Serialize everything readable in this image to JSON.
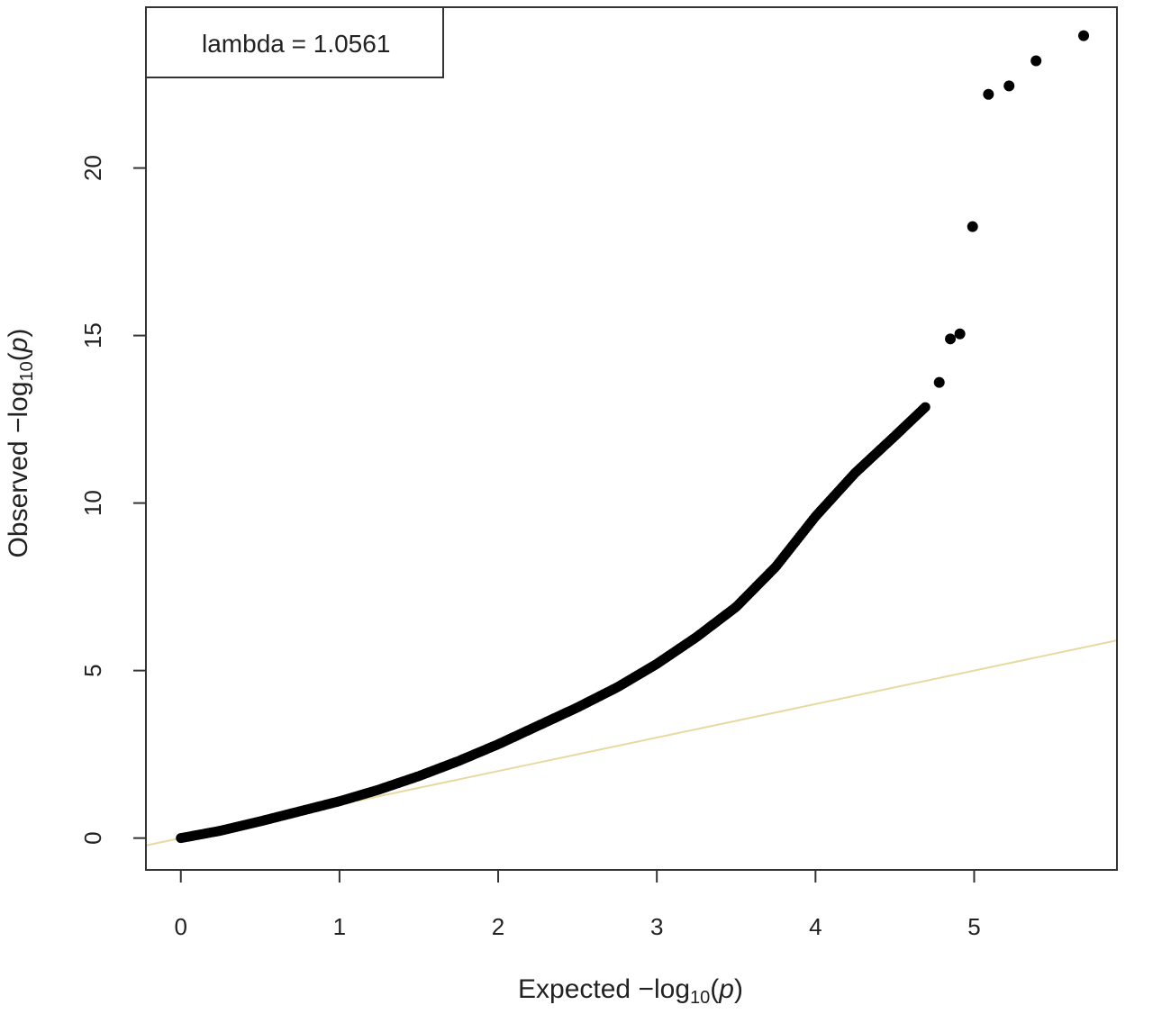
{
  "chart_data": {
    "type": "scatter",
    "title": "",
    "xlabel": "Expected −log10(p)",
    "ylabel": "Observed −log10(p)",
    "xlabel_parts": {
      "prefix": "Expected  −log",
      "sub": "10",
      "open": "(",
      "var": "p",
      "close": ")"
    },
    "ylabel_parts": {
      "prefix": "Observed  −log",
      "sub": "10",
      "open": "(",
      "var": "p",
      "close": ")"
    },
    "xlim": [
      -0.22,
      5.9
    ],
    "ylim": [
      -0.95,
      24.8
    ],
    "xticks": [
      0,
      1,
      2,
      3,
      4,
      5
    ],
    "yticks": [
      0,
      5,
      10,
      15,
      20
    ],
    "xtick_labels": [
      "0",
      "1",
      "2",
      "3",
      "4",
      "5"
    ],
    "ytick_labels": [
      "0",
      "5",
      "10",
      "15",
      "20"
    ],
    "grid": false,
    "legend": {
      "text": "lambda = 1.0561",
      "position": "top-left"
    },
    "reference_line": {
      "slope": 1,
      "intercept": 0,
      "color": "#e8d9a0"
    },
    "point_color": "#000000",
    "series": [
      {
        "curve": [
          [
            0,
            0
          ],
          [
            0.25,
            0.22
          ],
          [
            0.5,
            0.5
          ],
          [
            0.75,
            0.8
          ],
          [
            1.0,
            1.1
          ],
          [
            1.25,
            1.45
          ],
          [
            1.5,
            1.85
          ],
          [
            1.75,
            2.3
          ],
          [
            2.0,
            2.8
          ],
          [
            2.25,
            3.35
          ],
          [
            2.5,
            3.9
          ],
          [
            2.75,
            4.5
          ],
          [
            3.0,
            5.2
          ],
          [
            3.25,
            6.0
          ],
          [
            3.5,
            6.9
          ],
          [
            3.75,
            8.1
          ],
          [
            4.0,
            9.6
          ],
          [
            4.25,
            10.9
          ],
          [
            4.5,
            12.0
          ],
          [
            4.7,
            12.9
          ]
        ],
        "points": [
          [
            4.78,
            13.6
          ],
          [
            4.85,
            14.9
          ],
          [
            4.91,
            15.05
          ],
          [
            4.99,
            18.25
          ],
          [
            5.09,
            22.2
          ],
          [
            5.22,
            22.45
          ],
          [
            5.39,
            23.2
          ],
          [
            5.69,
            23.95
          ]
        ]
      }
    ]
  }
}
